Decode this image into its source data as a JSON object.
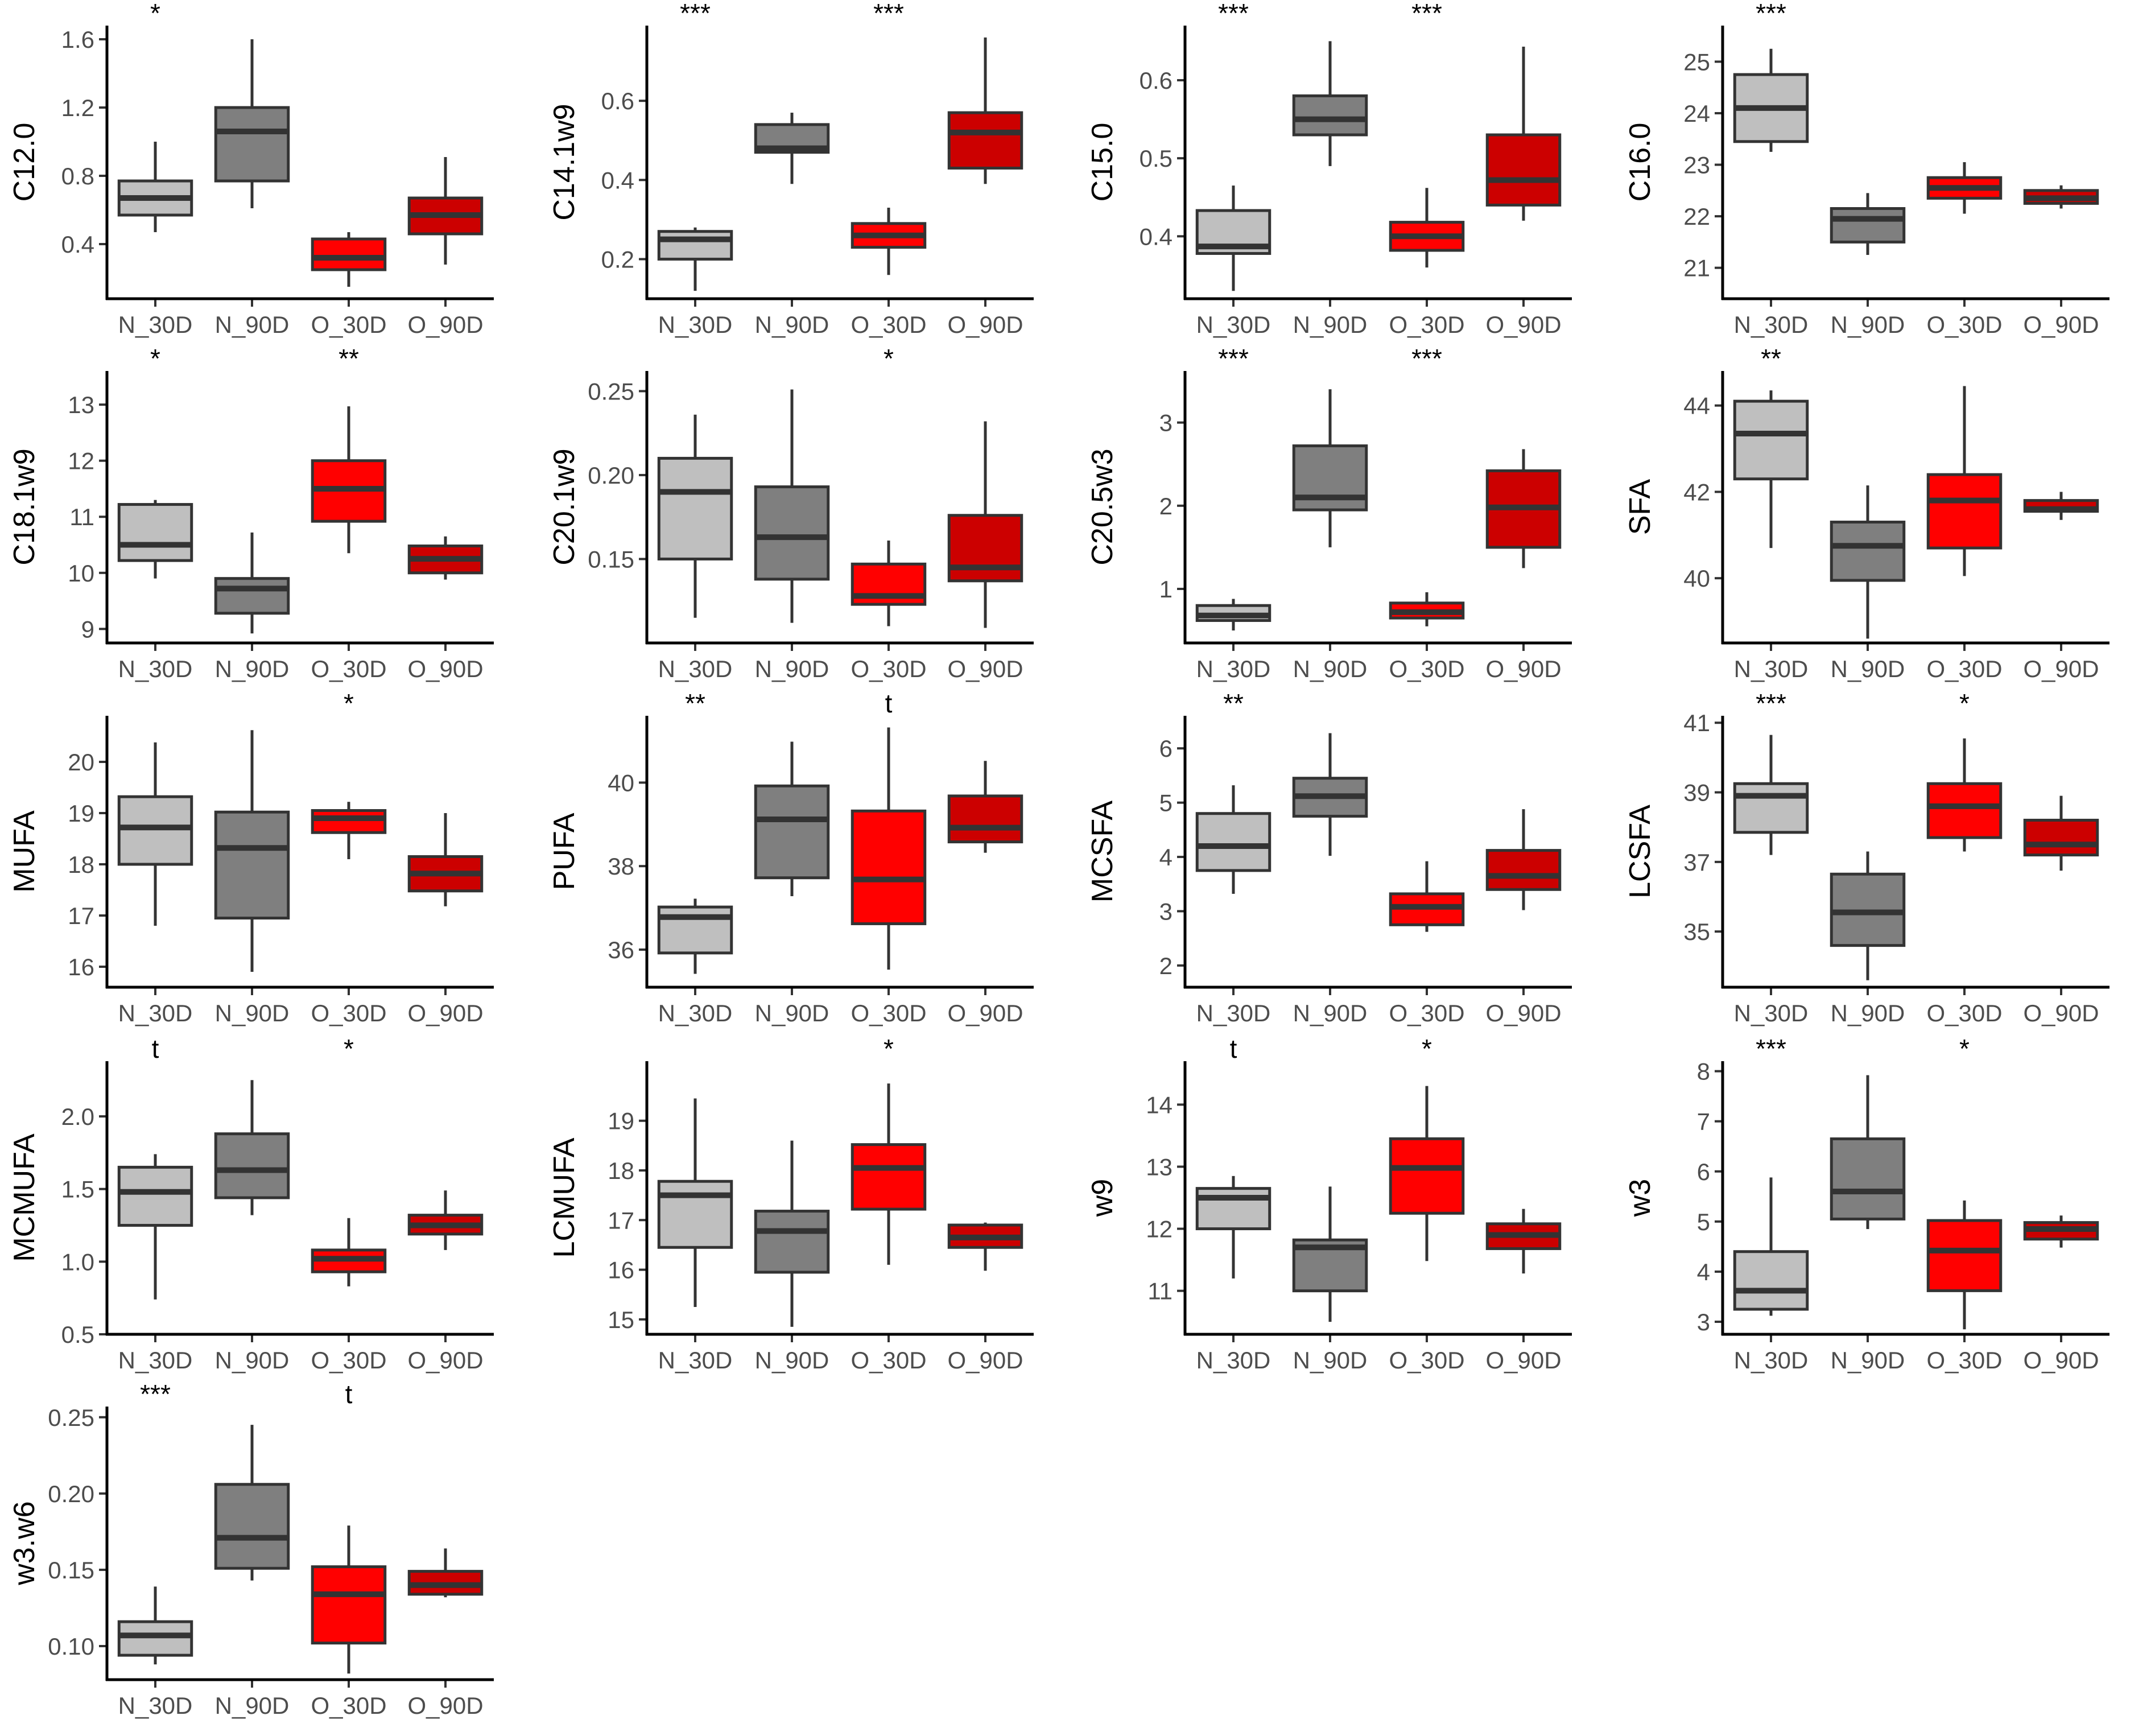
{
  "colors": {
    "N_30D": "#bfbfbf",
    "N_90D": "#7f7f7f",
    "O_30D": "#ff0000",
    "O_90D": "#cc0000",
    "median": "#333333",
    "axis": "#000000"
  },
  "chart_data": [
    {
      "type": "box",
      "ylabel": "C12.0",
      "categories": [
        "N_30D",
        "N_90D",
        "O_30D",
        "O_90D"
      ],
      "ylim": [
        0.08,
        1.68
      ],
      "yticks": [
        {
          "v": 0.4,
          "label": "0.4"
        },
        {
          "v": 0.8,
          "label": "0.8"
        },
        {
          "v": 1.2,
          "label": "1.2"
        },
        {
          "v": 1.6,
          "label": "1.6"
        }
      ],
      "boxes": [
        [
          0.47,
          0.57,
          0.67,
          0.77,
          1.0
        ],
        [
          0.61,
          0.77,
          1.06,
          1.2,
          1.6
        ],
        [
          0.15,
          0.25,
          0.32,
          0.43,
          0.47
        ],
        [
          0.28,
          0.46,
          0.57,
          0.67,
          0.91
        ]
      ],
      "sig": [
        "*",
        "",
        "",
        ""
      ]
    },
    {
      "type": "box",
      "ylabel": "C14.1w9",
      "categories": [
        "N_30D",
        "N_90D",
        "O_30D",
        "O_90D"
      ],
      "ylim": [
        0.1,
        0.79
      ],
      "yticks": [
        {
          "v": 0.2,
          "label": "0.2"
        },
        {
          "v": 0.4,
          "label": "0.4"
        },
        {
          "v": 0.6,
          "label": "0.6"
        }
      ],
      "boxes": [
        [
          0.12,
          0.2,
          0.25,
          0.27,
          0.28
        ],
        [
          0.39,
          0.47,
          0.48,
          0.54,
          0.57
        ],
        [
          0.16,
          0.23,
          0.26,
          0.29,
          0.33
        ],
        [
          0.39,
          0.43,
          0.52,
          0.57,
          0.76
        ]
      ],
      "sig": [
        "***",
        "",
        "***",
        ""
      ]
    },
    {
      "type": "box",
      "ylabel": "C15.0",
      "categories": [
        "N_30D",
        "N_90D",
        "O_30D",
        "O_90D"
      ],
      "ylim": [
        0.32,
        0.67
      ],
      "yticks": [
        {
          "v": 0.4,
          "label": "0.4"
        },
        {
          "v": 0.5,
          "label": "0.5"
        },
        {
          "v": 0.6,
          "label": "0.6"
        }
      ],
      "boxes": [
        [
          0.33,
          0.378,
          0.387,
          0.433,
          0.465
        ],
        [
          0.49,
          0.53,
          0.55,
          0.58,
          0.65
        ],
        [
          0.36,
          0.382,
          0.4,
          0.418,
          0.462
        ],
        [
          0.42,
          0.44,
          0.472,
          0.53,
          0.643
        ]
      ],
      "sig": [
        "***",
        "",
        "***",
        ""
      ]
    },
    {
      "type": "box",
      "ylabel": "C16.0",
      "categories": [
        "N_30D",
        "N_90D",
        "O_30D",
        "O_90D"
      ],
      "ylim": [
        20.4,
        25.7
      ],
      "yticks": [
        {
          "v": 21,
          "label": "21"
        },
        {
          "v": 22,
          "label": "22"
        },
        {
          "v": 23,
          "label": "23"
        },
        {
          "v": 24,
          "label": "24"
        },
        {
          "v": 25,
          "label": "25"
        }
      ],
      "boxes": [
        [
          23.25,
          23.45,
          24.1,
          24.75,
          25.25
        ],
        [
          21.25,
          21.5,
          21.95,
          22.15,
          22.45
        ],
        [
          22.05,
          22.35,
          22.55,
          22.75,
          23.05
        ],
        [
          22.15,
          22.25,
          22.35,
          22.5,
          22.6
        ]
      ],
      "sig": [
        "***",
        "",
        "",
        ""
      ]
    },
    {
      "type": "box",
      "ylabel": "C18.1w9",
      "categories": [
        "N_30D",
        "N_90D",
        "O_30D",
        "O_90D"
      ],
      "ylim": [
        8.75,
        13.6
      ],
      "yticks": [
        {
          "v": 9,
          "label": "9"
        },
        {
          "v": 10,
          "label": "10"
        },
        {
          "v": 11,
          "label": "11"
        },
        {
          "v": 12,
          "label": "12"
        },
        {
          "v": 13,
          "label": "13"
        }
      ],
      "boxes": [
        [
          9.9,
          10.22,
          10.5,
          11.22,
          11.3
        ],
        [
          8.92,
          9.28,
          9.72,
          9.9,
          10.72
        ],
        [
          10.35,
          10.92,
          11.5,
          12.0,
          12.97
        ],
        [
          9.88,
          10.0,
          10.25,
          10.48,
          10.65
        ]
      ],
      "sig": [
        "*",
        "",
        "**",
        ""
      ]
    },
    {
      "type": "box",
      "ylabel": "C20.1w9",
      "categories": [
        "N_30D",
        "N_90D",
        "O_30D",
        "O_90D"
      ],
      "ylim": [
        0.1,
        0.262
      ],
      "yticks": [
        {
          "v": 0.15,
          "label": "0.15"
        },
        {
          "v": 0.2,
          "label": "0.20"
        },
        {
          "v": 0.25,
          "label": "0.25"
        }
      ],
      "boxes": [
        [
          0.115,
          0.15,
          0.19,
          0.21,
          0.236
        ],
        [
          0.112,
          0.138,
          0.163,
          0.193,
          0.251
        ],
        [
          0.11,
          0.123,
          0.128,
          0.147,
          0.161
        ],
        [
          0.109,
          0.137,
          0.145,
          0.176,
          0.232
        ]
      ],
      "sig": [
        "",
        "",
        "*",
        ""
      ]
    },
    {
      "type": "box",
      "ylabel": "C20.5w3",
      "categories": [
        "N_30D",
        "N_90D",
        "O_30D",
        "O_90D"
      ],
      "ylim": [
        0.35,
        3.62
      ],
      "yticks": [
        {
          "v": 1,
          "label": "1"
        },
        {
          "v": 2,
          "label": "2"
        },
        {
          "v": 3,
          "label": "3"
        }
      ],
      "boxes": [
        [
          0.5,
          0.62,
          0.68,
          0.8,
          0.88
        ],
        [
          1.5,
          1.95,
          2.1,
          2.72,
          3.4
        ],
        [
          0.55,
          0.65,
          0.72,
          0.83,
          0.96
        ],
        [
          1.25,
          1.5,
          1.98,
          2.42,
          2.68
        ]
      ],
      "sig": [
        "***",
        "",
        "***",
        ""
      ]
    },
    {
      "type": "box",
      "ylabel": "SFA",
      "categories": [
        "N_30D",
        "N_90D",
        "O_30D",
        "O_90D"
      ],
      "ylim": [
        38.5,
        44.8
      ],
      "yticks": [
        {
          "v": 40,
          "label": "40"
        },
        {
          "v": 42,
          "label": "42"
        },
        {
          "v": 44,
          "label": "44"
        }
      ],
      "boxes": [
        [
          40.7,
          42.3,
          43.35,
          44.1,
          44.35
        ],
        [
          38.6,
          39.95,
          40.75,
          41.3,
          42.15
        ],
        [
          40.05,
          40.7,
          41.8,
          42.4,
          44.45
        ],
        [
          41.35,
          41.55,
          41.6,
          41.8,
          42.0
        ]
      ],
      "sig": [
        "**",
        "",
        "",
        ""
      ]
    },
    {
      "type": "box",
      "ylabel": "MUFA",
      "categories": [
        "N_30D",
        "N_90D",
        "O_30D",
        "O_90D"
      ],
      "ylim": [
        15.6,
        20.9
      ],
      "yticks": [
        {
          "v": 16,
          "label": "16"
        },
        {
          "v": 17,
          "label": "17"
        },
        {
          "v": 18,
          "label": "18"
        },
        {
          "v": 19,
          "label": "19"
        },
        {
          "v": 20,
          "label": "20"
        }
      ],
      "boxes": [
        [
          16.8,
          18.0,
          18.72,
          19.32,
          20.38
        ],
        [
          15.9,
          16.95,
          18.32,
          19.02,
          20.62
        ],
        [
          18.1,
          18.62,
          18.9,
          19.05,
          19.22
        ],
        [
          17.18,
          17.48,
          17.82,
          18.15,
          19.0
        ]
      ],
      "sig": [
        "",
        "",
        "*",
        ""
      ]
    },
    {
      "type": "box",
      "ylabel": "PUFA",
      "categories": [
        "N_30D",
        "N_90D",
        "O_30D",
        "O_90D"
      ],
      "ylim": [
        35.1,
        41.6
      ],
      "yticks": [
        {
          "v": 36,
          "label": "36"
        },
        {
          "v": 38,
          "label": "38"
        },
        {
          "v": 40,
          "label": "40"
        }
      ],
      "boxes": [
        [
          35.42,
          35.92,
          36.78,
          37.02,
          37.22
        ],
        [
          37.28,
          37.72,
          39.12,
          39.92,
          40.98
        ],
        [
          35.52,
          36.62,
          37.68,
          39.32,
          41.32
        ],
        [
          38.32,
          38.58,
          38.92,
          39.68,
          40.52
        ]
      ],
      "sig": [
        "**",
        "",
        "t",
        ""
      ]
    },
    {
      "type": "box",
      "ylabel": "MCSFA",
      "categories": [
        "N_30D",
        "N_90D",
        "O_30D",
        "O_90D"
      ],
      "ylim": [
        1.6,
        6.6
      ],
      "yticks": [
        {
          "v": 2,
          "label": "2"
        },
        {
          "v": 3,
          "label": "3"
        },
        {
          "v": 4,
          "label": "4"
        },
        {
          "v": 5,
          "label": "5"
        },
        {
          "v": 6,
          "label": "6"
        }
      ],
      "boxes": [
        [
          3.32,
          3.75,
          4.2,
          4.8,
          5.32
        ],
        [
          4.02,
          4.75,
          5.12,
          5.45,
          6.28
        ],
        [
          2.62,
          2.75,
          3.08,
          3.32,
          3.92
        ],
        [
          3.02,
          3.4,
          3.65,
          4.12,
          4.88
        ]
      ],
      "sig": [
        "**",
        "",
        "",
        ""
      ]
    },
    {
      "type": "box",
      "ylabel": "LCSFA",
      "categories": [
        "N_30D",
        "N_90D",
        "O_30D",
        "O_90D"
      ],
      "ylim": [
        33.4,
        41.2
      ],
      "yticks": [
        {
          "v": 35,
          "label": "35"
        },
        {
          "v": 37,
          "label": "37"
        },
        {
          "v": 39,
          "label": "39"
        },
        {
          "v": 41,
          "label": "41"
        }
      ],
      "boxes": [
        [
          37.2,
          37.85,
          38.9,
          39.25,
          40.65
        ],
        [
          33.6,
          34.6,
          35.55,
          36.65,
          37.3
        ],
        [
          37.3,
          37.7,
          38.6,
          39.25,
          40.55
        ],
        [
          36.75,
          37.2,
          37.5,
          38.2,
          38.9
        ]
      ],
      "sig": [
        "***",
        "",
        "*",
        ""
      ]
    },
    {
      "type": "box",
      "ylabel": "MCMUFA",
      "categories": [
        "N_30D",
        "N_90D",
        "O_30D",
        "O_90D"
      ],
      "ylim": [
        0.5,
        2.38
      ],
      "yticks": [
        {
          "v": 0.5,
          "label": "0.5"
        },
        {
          "v": 1.0,
          "label": "1.0"
        },
        {
          "v": 1.5,
          "label": "1.5"
        },
        {
          "v": 2.0,
          "label": "2.0"
        }
      ],
      "boxes": [
        [
          0.74,
          1.25,
          1.48,
          1.65,
          1.74
        ],
        [
          1.32,
          1.44,
          1.63,
          1.88,
          2.25
        ],
        [
          0.83,
          0.93,
          1.02,
          1.08,
          1.3
        ],
        [
          1.08,
          1.19,
          1.25,
          1.32,
          1.49
        ]
      ],
      "sig": [
        "t",
        "",
        "*",
        ""
      ]
    },
    {
      "type": "box",
      "ylabel": "LCMUFA",
      "categories": [
        "N_30D",
        "N_90D",
        "O_30D",
        "O_90D"
      ],
      "ylim": [
        14.7,
        20.2
      ],
      "yticks": [
        {
          "v": 15,
          "label": "15"
        },
        {
          "v": 16,
          "label": "16"
        },
        {
          "v": 17,
          "label": "17"
        },
        {
          "v": 18,
          "label": "18"
        },
        {
          "v": 19,
          "label": "19"
        }
      ],
      "boxes": [
        [
          15.25,
          16.45,
          17.5,
          17.78,
          19.45
        ],
        [
          14.85,
          15.95,
          16.78,
          17.18,
          18.6
        ],
        [
          16.1,
          17.22,
          18.05,
          18.52,
          19.75
        ],
        [
          15.98,
          16.45,
          16.65,
          16.9,
          16.95
        ]
      ],
      "sig": [
        "",
        "",
        "*",
        ""
      ]
    },
    {
      "type": "box",
      "ylabel": "w9",
      "categories": [
        "N_30D",
        "N_90D",
        "O_30D",
        "O_90D"
      ],
      "ylim": [
        10.3,
        14.7
      ],
      "yticks": [
        {
          "v": 11,
          "label": "11"
        },
        {
          "v": 12,
          "label": "12"
        },
        {
          "v": 13,
          "label": "13"
        },
        {
          "v": 14,
          "label": "14"
        }
      ],
      "boxes": [
        [
          11.2,
          12.0,
          12.5,
          12.65,
          12.85
        ],
        [
          10.5,
          11.0,
          11.7,
          11.82,
          12.68
        ],
        [
          11.48,
          12.25,
          12.98,
          13.45,
          14.3
        ],
        [
          11.28,
          11.68,
          11.9,
          12.08,
          12.32
        ]
      ],
      "sig": [
        "t",
        "",
        "*",
        ""
      ]
    },
    {
      "type": "box",
      "ylabel": "w3",
      "categories": [
        "N_30D",
        "N_90D",
        "O_30D",
        "O_90D"
      ],
      "ylim": [
        2.75,
        8.2
      ],
      "yticks": [
        {
          "v": 3,
          "label": "3"
        },
        {
          "v": 4,
          "label": "4"
        },
        {
          "v": 5,
          "label": "5"
        },
        {
          "v": 6,
          "label": "6"
        },
        {
          "v": 7,
          "label": "7"
        },
        {
          "v": 8,
          "label": "8"
        }
      ],
      "boxes": [
        [
          3.12,
          3.25,
          3.62,
          4.4,
          5.88
        ],
        [
          4.85,
          5.05,
          5.6,
          6.65,
          7.92
        ],
        [
          2.85,
          3.62,
          4.42,
          5.02,
          5.42
        ],
        [
          4.48,
          4.65,
          4.85,
          4.98,
          5.12
        ]
      ],
      "sig": [
        "***",
        "",
        "*",
        ""
      ]
    },
    {
      "type": "box",
      "ylabel": "w3.w6",
      "categories": [
        "N_30D",
        "N_90D",
        "O_30D",
        "O_90D"
      ],
      "ylim": [
        0.078,
        0.257
      ],
      "yticks": [
        {
          "v": 0.1,
          "label": "0.10"
        },
        {
          "v": 0.15,
          "label": "0.15"
        },
        {
          "v": 0.2,
          "label": "0.20"
        },
        {
          "v": 0.25,
          "label": "0.25"
        }
      ],
      "boxes": [
        [
          0.088,
          0.094,
          0.107,
          0.116,
          0.139
        ],
        [
          0.143,
          0.151,
          0.171,
          0.206,
          0.245
        ],
        [
          0.082,
          0.102,
          0.134,
          0.152,
          0.179
        ],
        [
          0.132,
          0.134,
          0.14,
          0.149,
          0.164
        ]
      ],
      "sig": [
        "***",
        "",
        "t",
        ""
      ]
    }
  ]
}
